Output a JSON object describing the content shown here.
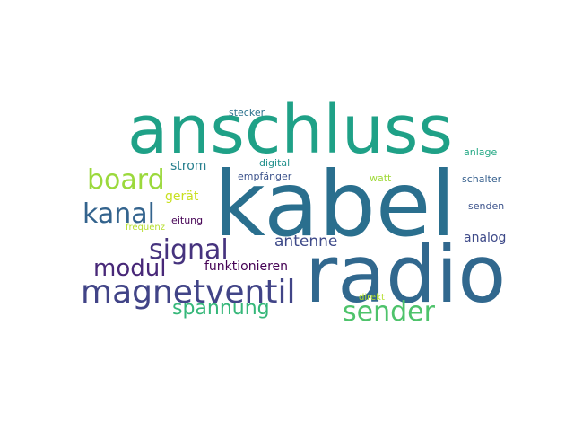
{
  "cloud": {
    "words": [
      {
        "text": "kabel",
        "weight": 1.0,
        "color": "#2a6f8e"
      },
      {
        "text": "radio",
        "weight": 0.88,
        "color": "#31688e"
      },
      {
        "text": "anschluss",
        "weight": 0.83,
        "color": "#1fa187"
      },
      {
        "text": "magnetventil",
        "weight": 0.42,
        "color": "#414487"
      },
      {
        "text": "sender",
        "weight": 0.32,
        "color": "#4ec36b"
      },
      {
        "text": "signal",
        "weight": 0.32,
        "color": "#46337e"
      },
      {
        "text": "board",
        "weight": 0.32,
        "color": "#9bd93c"
      },
      {
        "text": "kanal",
        "weight": 0.32,
        "color": "#33638d"
      },
      {
        "text": "modul",
        "weight": 0.28,
        "color": "#482878"
      },
      {
        "text": "spannung",
        "weight": 0.24,
        "color": "#35b779"
      },
      {
        "text": "antenne",
        "weight": 0.2,
        "color": "#3e4a89"
      },
      {
        "text": "funktionieren",
        "weight": 0.15,
        "color": "#440154"
      },
      {
        "text": "strom",
        "weight": 0.15,
        "color": "#277f8e"
      },
      {
        "text": "gerät",
        "weight": 0.15,
        "color": "#c8e020"
      },
      {
        "text": "analog",
        "weight": 0.15,
        "color": "#3e4a89"
      },
      {
        "text": "leitung",
        "weight": 0.12,
        "color": "#440154"
      },
      {
        "text": "stecker",
        "weight": 0.12,
        "color": "#2c728e"
      },
      {
        "text": "digital",
        "weight": 0.12,
        "color": "#21918c"
      },
      {
        "text": "empfänger",
        "weight": 0.12,
        "color": "#3b528b"
      },
      {
        "text": "anlage",
        "weight": 0.12,
        "color": "#22a884"
      },
      {
        "text": "watt",
        "weight": 0.12,
        "color": "#a0da39"
      },
      {
        "text": "schalter",
        "weight": 0.12,
        "color": "#355f8d"
      },
      {
        "text": "senden",
        "weight": 0.12,
        "color": "#3b528b"
      },
      {
        "text": "frequenz",
        "weight": 0.12,
        "color": "#b5de2b"
      },
      {
        "text": "direkt",
        "weight": 0.12,
        "color": "#b5de2b"
      }
    ]
  }
}
